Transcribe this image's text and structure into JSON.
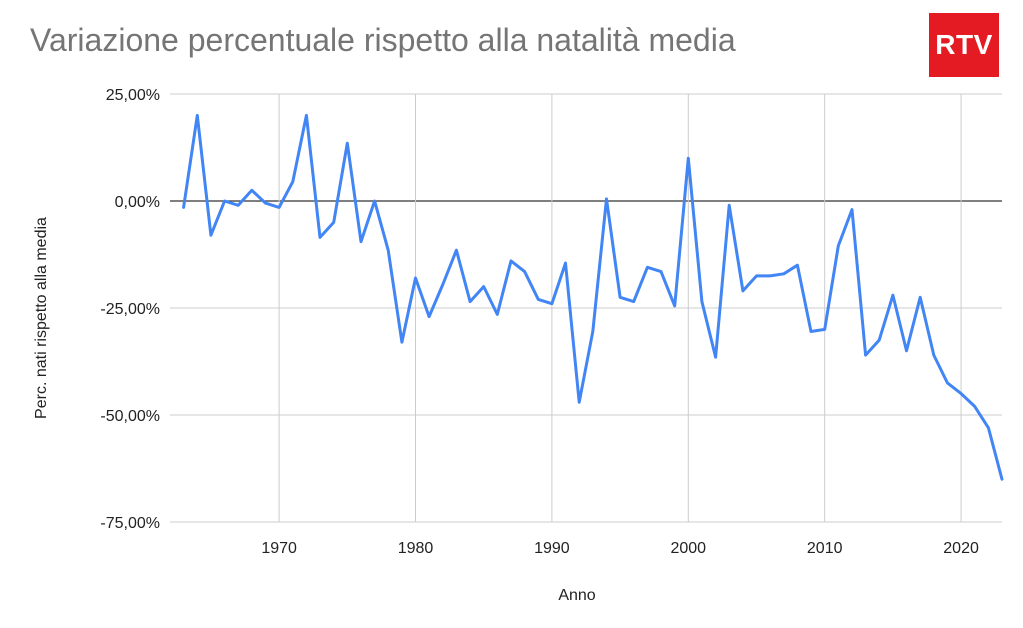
{
  "title": "Variazione percentuale rispetto alla natalità media",
  "logo_text": "RTV",
  "colors": {
    "line": "#4285f4",
    "grid": "#cccccc",
    "zero_line": "#333333",
    "logo": "#e51b23"
  },
  "chart_data": {
    "type": "line",
    "title": "Variazione percentuale rispetto alla natalità media",
    "xlabel": "Anno",
    "ylabel": "Perc. nati rispetto alla media",
    "xlim": [
      1962,
      2023
    ],
    "ylim": [
      -75,
      25
    ],
    "xticks": [
      1970,
      1980,
      1990,
      2000,
      2010,
      2020
    ],
    "yticks": [
      25,
      0,
      -25,
      -50,
      -75
    ],
    "ytick_labels": [
      "25,00%",
      "0,00%",
      "-25,00%",
      "-50,00%",
      "-75,00%"
    ],
    "grid": true,
    "legend": "none",
    "series": [
      {
        "x": [
          1963,
          1964,
          1965,
          1966,
          1967,
          1968,
          1969,
          1970,
          1971,
          1972,
          1973,
          1974,
          1975,
          1976,
          1977,
          1978,
          1979,
          1980,
          1981,
          1982,
          1983,
          1984,
          1985,
          1986,
          1987,
          1988,
          1989,
          1990,
          1991,
          1992,
          1993,
          1994,
          1995,
          1996,
          1997,
          1998,
          1999,
          2000,
          2001,
          2002,
          2003,
          2004,
          2005,
          2006,
          2007,
          2008,
          2009,
          2010,
          2011,
          2012,
          2013,
          2014,
          2015,
          2016,
          2017,
          2018,
          2019,
          2020,
          2021,
          2022,
          2023
        ],
        "values": [
          -1.5,
          20,
          -8,
          0,
          -1,
          2.5,
          -0.5,
          -1.5,
          4.5,
          20,
          -8.5,
          -5,
          13.5,
          -9.5,
          0,
          -11.5,
          -33,
          -18,
          -27,
          -19.5,
          -11.5,
          -23.5,
          -20,
          -26.5,
          -14,
          -16.5,
          -23,
          -24,
          -14.5,
          -47,
          -30.5,
          0.5,
          -22.5,
          -23.5,
          -15.5,
          -16.5,
          -24.5,
          10,
          -23.5,
          -36.5,
          -1,
          -21,
          -17.5,
          -17.5,
          -17,
          -15,
          -30.5,
          -30,
          -10.5,
          -2,
          -36,
          -32.5,
          -22,
          -35,
          -22.5,
          -36,
          -42.5,
          -45,
          -48,
          -53,
          -65
        ]
      }
    ]
  }
}
